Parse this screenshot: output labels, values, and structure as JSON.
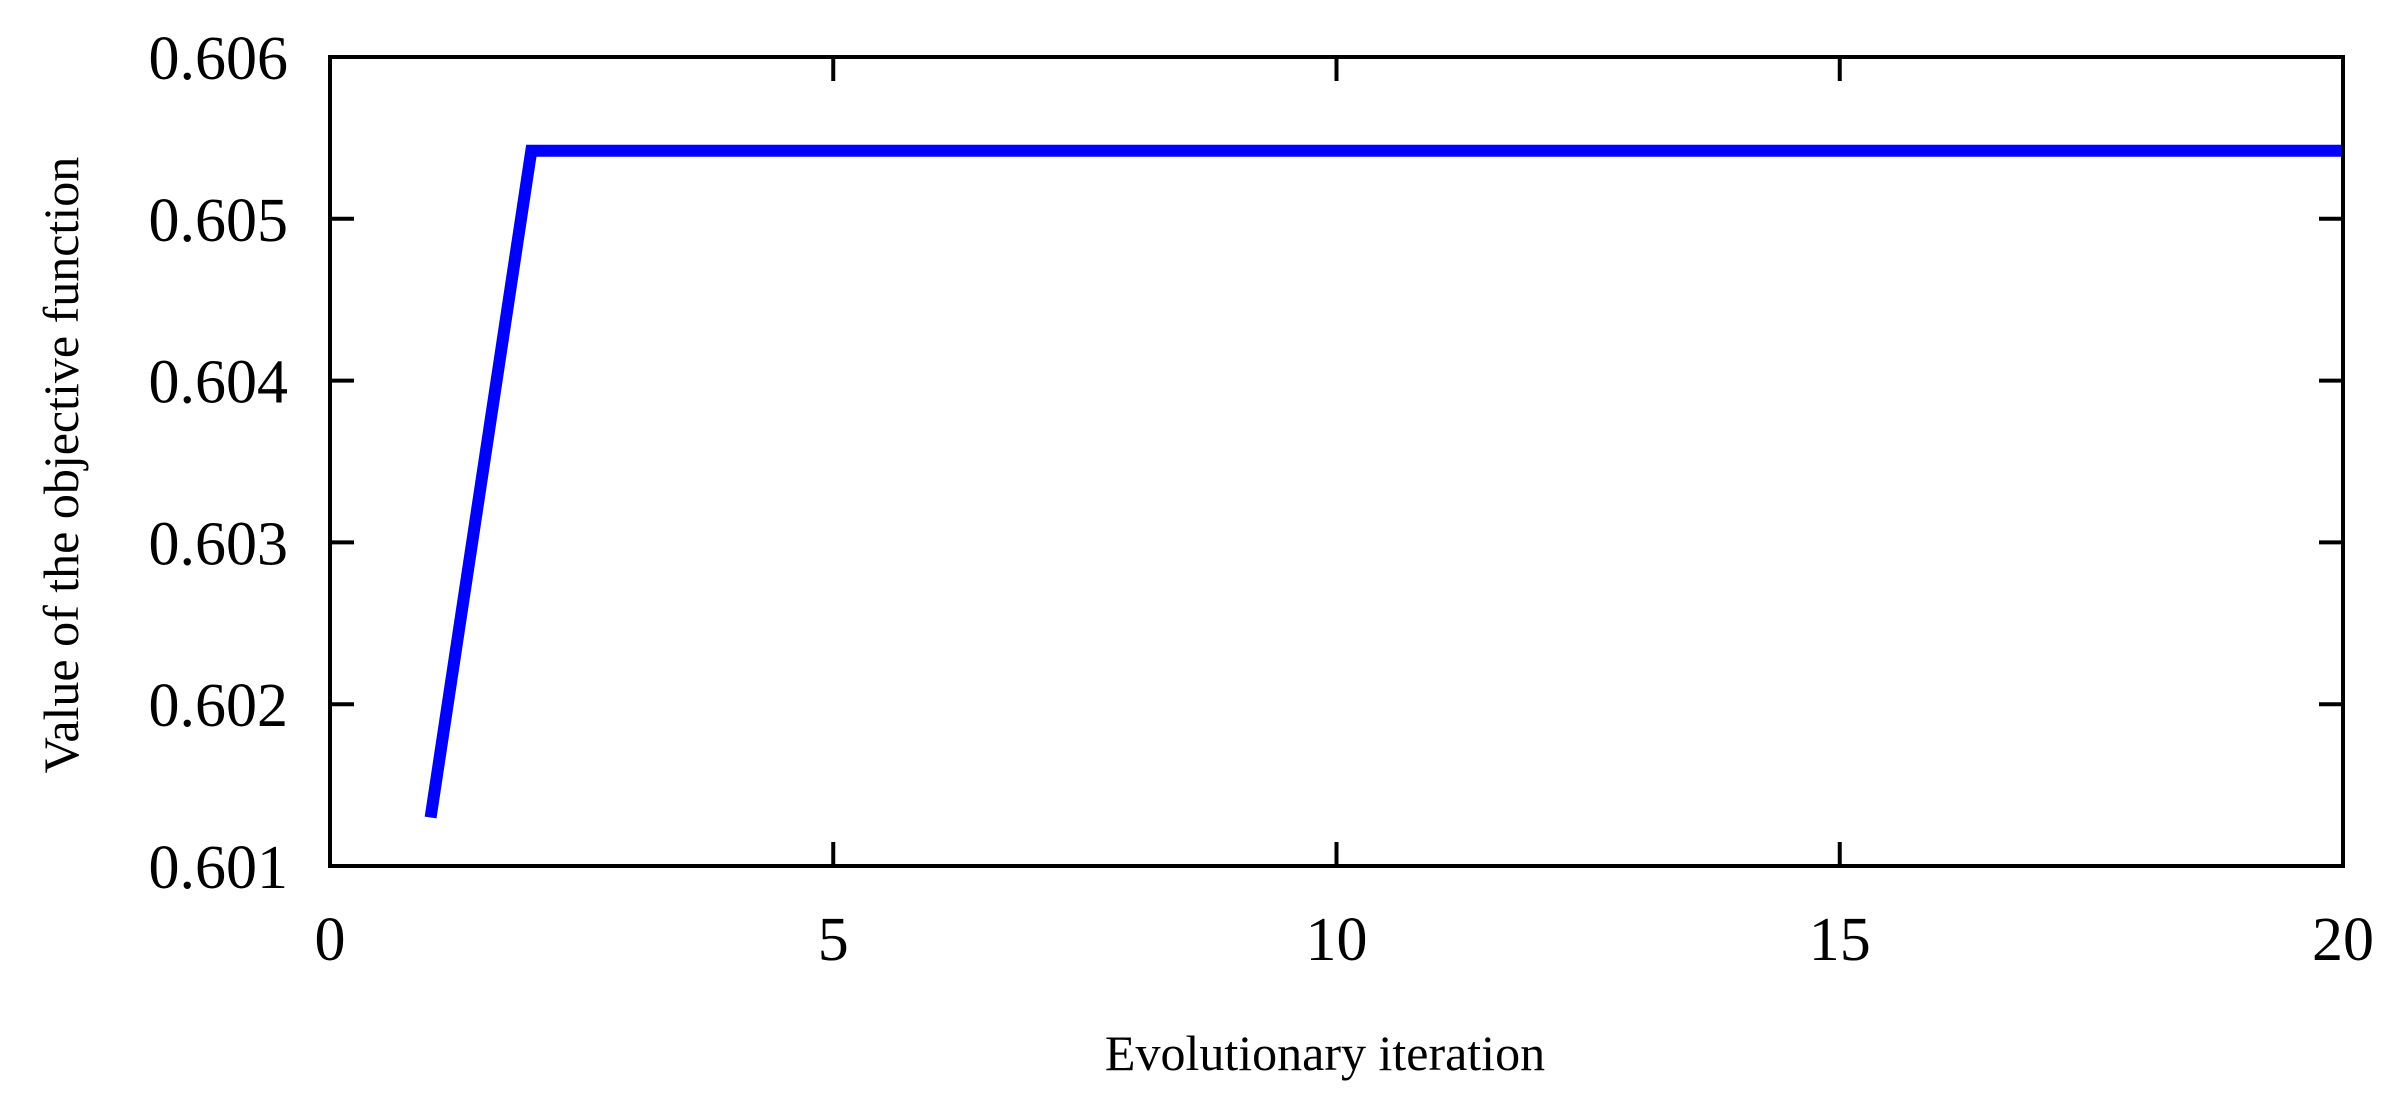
{
  "chart_data": {
    "type": "line",
    "title": "",
    "xlabel": "Evolutionary iteration",
    "ylabel": "Value of the objective function",
    "xlim": [
      0,
      20
    ],
    "ylim": [
      0.601,
      0.606
    ],
    "xticks": [
      0,
      5,
      10,
      15,
      20
    ],
    "xtick_labels": [
      "0",
      "5",
      "10",
      "15",
      "20"
    ],
    "yticks": [
      0.601,
      0.602,
      0.603,
      0.604,
      0.605,
      0.606
    ],
    "ytick_labels": [
      "0.601",
      "0.602",
      "0.603",
      "0.604",
      "0.605",
      "0.606"
    ],
    "grid": false,
    "series": [
      {
        "color": "#0000ff",
        "x": [
          1,
          2,
          3,
          4,
          5,
          6,
          7,
          8,
          9,
          10,
          11,
          12,
          13,
          14,
          15,
          16,
          17,
          18,
          19,
          20
        ],
        "values": [
          0.6013,
          0.60542,
          0.60542,
          0.60542,
          0.60542,
          0.60542,
          0.60542,
          0.60542,
          0.60542,
          0.60542,
          0.60542,
          0.60542,
          0.60542,
          0.60542,
          0.60542,
          0.60542,
          0.60542,
          0.60542,
          0.60542,
          0.60542
        ]
      }
    ]
  }
}
